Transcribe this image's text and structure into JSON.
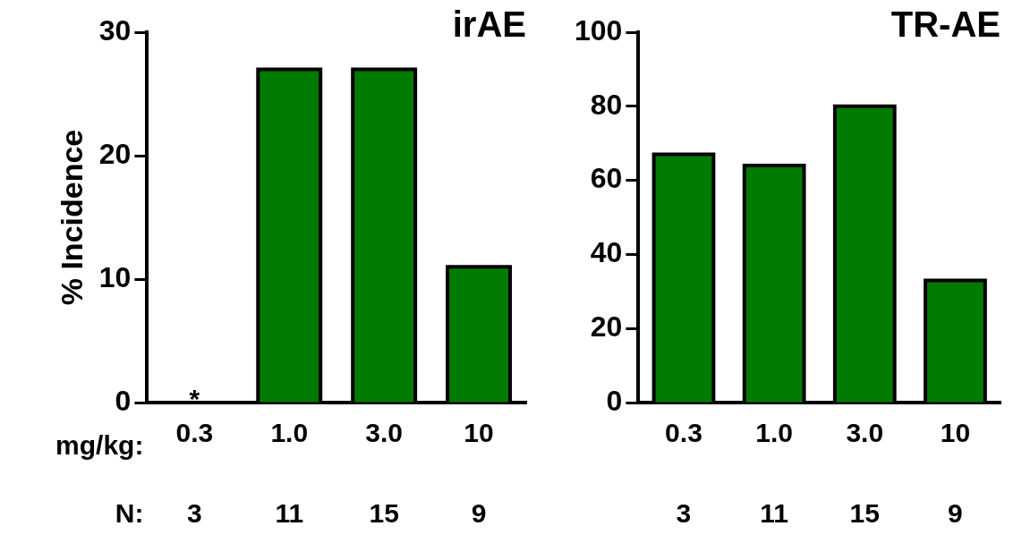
{
  "chart_data": [
    {
      "type": "bar",
      "title": "irAE",
      "ylabel": "% Incidence",
      "categories": [
        "0.3",
        "1.0",
        "3.0",
        "10"
      ],
      "values": [
        0,
        27,
        27,
        11
      ],
      "color": "#007a00",
      "ylim": [
        0,
        30
      ],
      "yticks": [
        0,
        10,
        20,
        30
      ],
      "grid": false,
      "legend": false,
      "annotations": [
        "mg/kg:",
        "N:",
        "3",
        "11",
        "15",
        "9",
        {
          "text": "*",
          "x": "0.3",
          "y": 0
        }
      ]
    },
    {
      "type": "bar",
      "title": "TR-AE",
      "categories": [
        "0.3",
        "1.0",
        "3.0",
        "10"
      ],
      "values": [
        67,
        64,
        80,
        33
      ],
      "color": "#007a00",
      "ylim": [
        0,
        100
      ],
      "yticks": [
        0,
        20,
        40,
        60,
        80,
        100
      ],
      "grid": false,
      "legend": false,
      "annotations": [
        "3",
        "11",
        "15",
        "9"
      ]
    }
  ]
}
